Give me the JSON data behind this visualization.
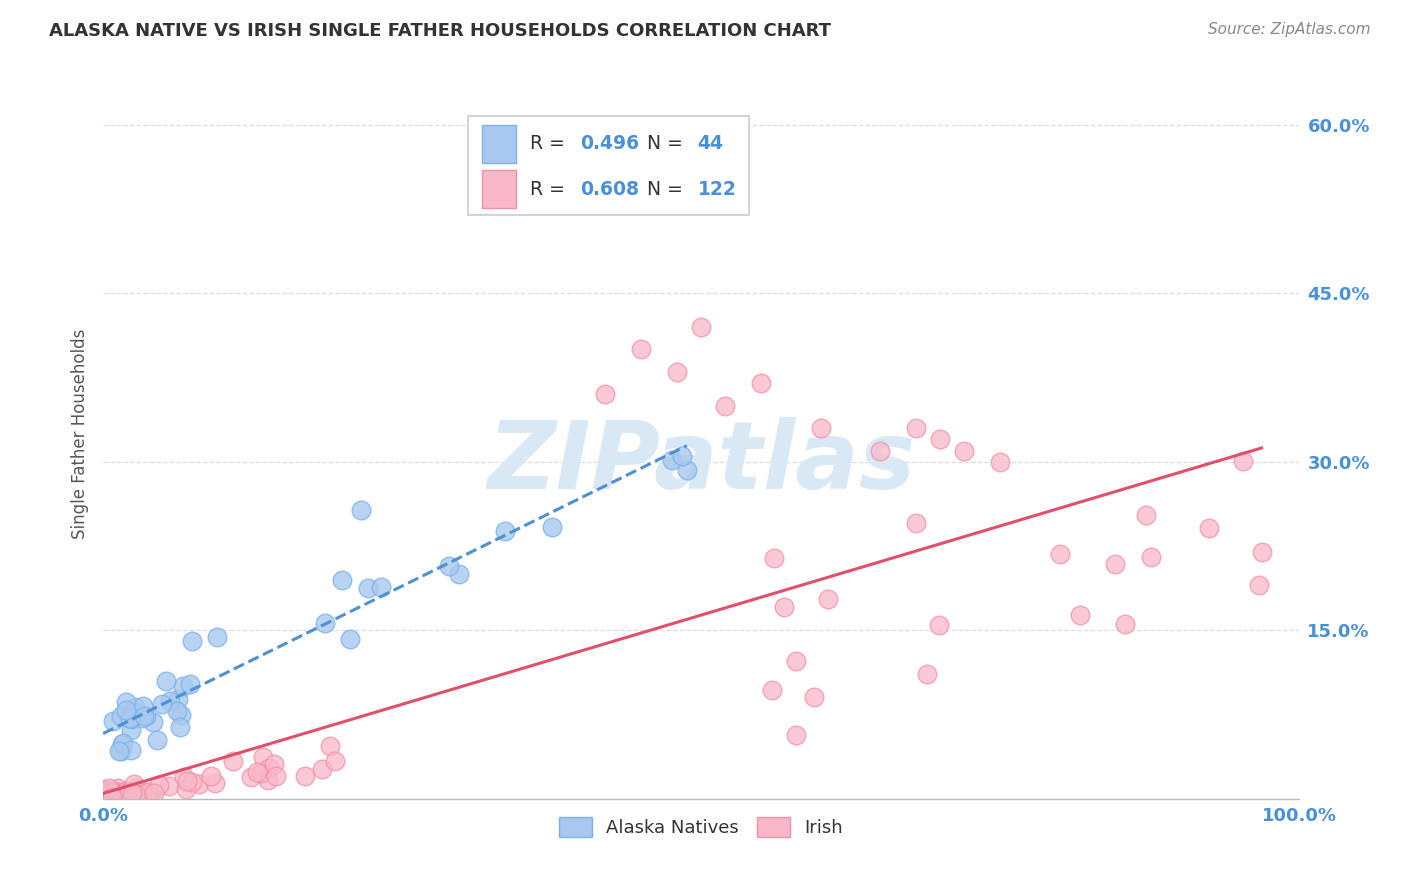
{
  "title": "ALASKA NATIVE VS IRISH SINGLE FATHER HOUSEHOLDS CORRELATION CHART",
  "source": "Source: ZipAtlas.com",
  "ylabel": "Single Father Households",
  "legend_r_alaska": "0.496",
  "legend_n_alaska": "44",
  "legend_r_irish": "0.608",
  "legend_n_irish": "122",
  "alaska_face_color": "#A8C8F0",
  "alaska_edge_color": "#7EB3E8",
  "irish_face_color": "#F9B8C8",
  "irish_edge_color": "#F090A8",
  "alaska_line_color": "#5090D0",
  "irish_line_color": "#E0506A",
  "axis_tick_color": "#4A90D9",
  "title_color": "#333333",
  "source_color": "#888888",
  "ylabel_color": "#555555",
  "watermark_text": "ZIPatlas",
  "watermark_color": "#D8E8F5",
  "grid_color": "#DDDDDD",
  "bg_color": "#FFFFFF",
  "legend_text_color": "#333333",
  "legend_num_color": "#4A90D9"
}
